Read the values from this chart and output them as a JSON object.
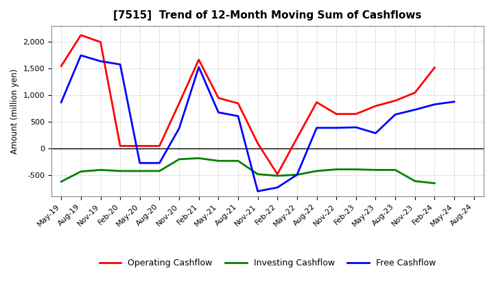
{
  "title": "[7515]  Trend of 12-Month Moving Sum of Cashflows",
  "ylabel": "Amount (million yen)",
  "x_labels": [
    "May-19",
    "Aug-19",
    "Nov-19",
    "Feb-20",
    "May-20",
    "Aug-20",
    "Nov-20",
    "Feb-21",
    "May-21",
    "Aug-21",
    "Nov-21",
    "Feb-22",
    "May-22",
    "Aug-22",
    "Nov-22",
    "Feb-23",
    "May-23",
    "Aug-23",
    "Nov-23",
    "Feb-24",
    "May-24",
    "Aug-24"
  ],
  "operating": [
    1550,
    2130,
    2000,
    50,
    50,
    50,
    850,
    1670,
    950,
    850,
    100,
    -480,
    200,
    870,
    650,
    650,
    800,
    900,
    1050,
    1520,
    null,
    null
  ],
  "investing": [
    -620,
    -430,
    -400,
    -420,
    -420,
    -420,
    -200,
    -180,
    -230,
    -230,
    -480,
    -510,
    -490,
    -420,
    -390,
    -390,
    -400,
    -400,
    -610,
    -650,
    null,
    null
  ],
  "free": [
    870,
    1750,
    1640,
    1580,
    -270,
    -270,
    380,
    1530,
    680,
    610,
    -800,
    -730,
    -490,
    390,
    390,
    400,
    290,
    640,
    730,
    830,
    880,
    null
  ],
  "ylim": [
    -900,
    2300
  ],
  "yticks": [
    -500,
    0,
    500,
    1000,
    1500,
    2000
  ],
  "colors": {
    "operating": "#ff0000",
    "investing": "#008000",
    "free": "#0000ff"
  },
  "background": "#ffffff",
  "grid_color": "#bbbbbb",
  "linewidth": 2.0,
  "title_fontsize": 11,
  "label_fontsize": 8.5,
  "tick_fontsize": 8,
  "legend_fontsize": 9
}
